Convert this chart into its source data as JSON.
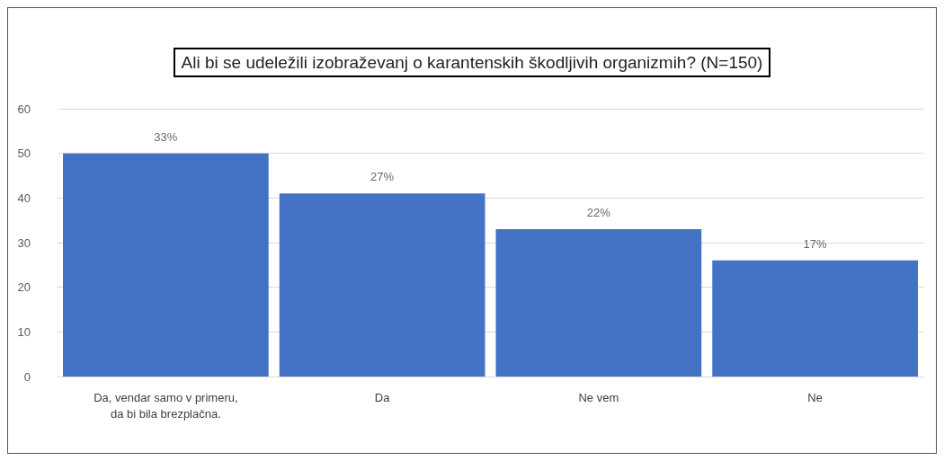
{
  "chart_data": {
    "type": "bar",
    "title": "Ali bi se udeležili izobraževanj o karantenskih škodljivih organizmih? (N=150)",
    "categories": [
      "Da, vendar samo v primeru,\nda bi bila brezplačna.",
      "Da",
      "Ne vem",
      "Ne"
    ],
    "values": [
      50,
      41,
      33,
      26
    ],
    "annotations": [
      {
        "text": "33%",
        "x": "Da, vendar samo v primeru,\nda bi bila brezplačna.",
        "y": 50
      },
      {
        "text": "27%",
        "x": "Da",
        "y": 41
      },
      {
        "text": "22%",
        "x": "Ne vem",
        "y": 33
      },
      {
        "text": "17%",
        "x": "Ne",
        "y": 26
      }
    ],
    "color": "#4472c4",
    "ylim": [
      0,
      60
    ],
    "yticks": [
      0,
      10,
      20,
      30,
      40,
      50,
      60
    ],
    "grid": "y"
  }
}
